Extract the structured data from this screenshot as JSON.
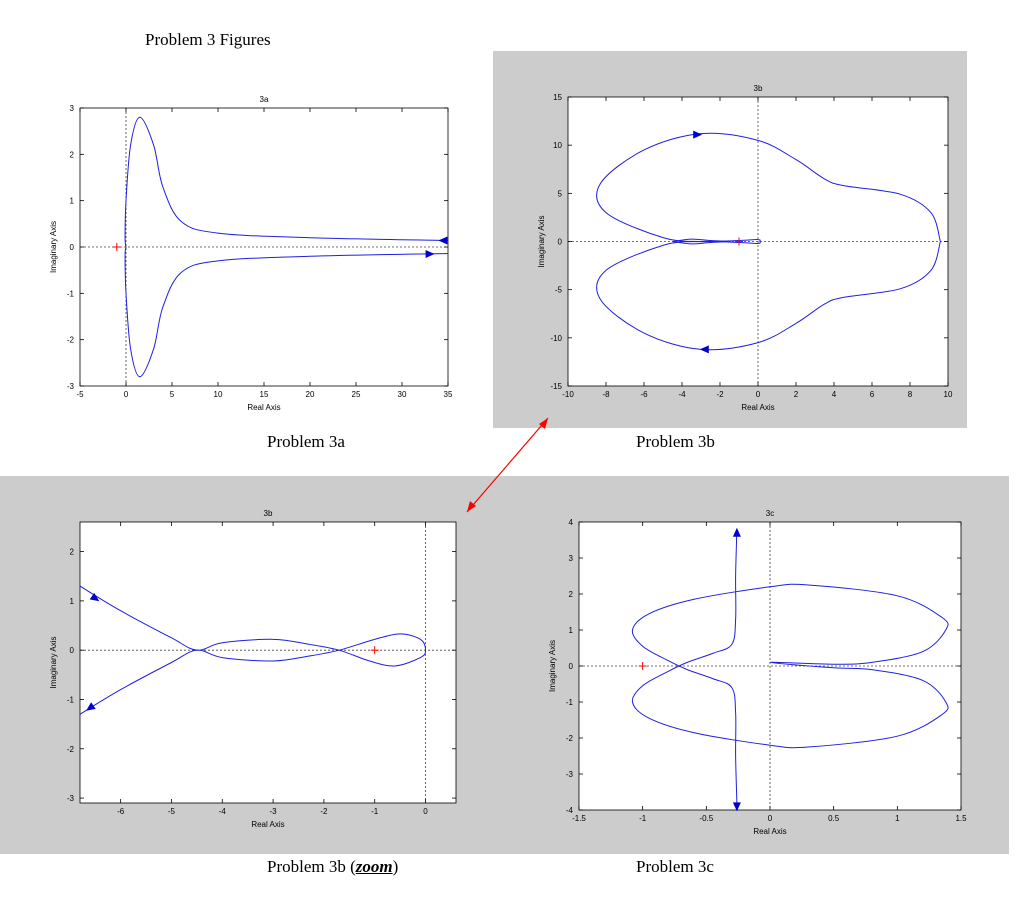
{
  "page_title": "Problem 3 Figures",
  "colors": {
    "curve": "#1f1fe0",
    "marker": "#ff0000",
    "figure_bg": "#cccccc"
  },
  "captions": {
    "p3a": "Problem 3a",
    "p3b": "Problem 3b",
    "p3b_zoom_prefix": "Problem 3b (",
    "p3b_zoom_word": "zoom",
    "p3b_zoom_suffix": ")",
    "p3c": "Problem 3c"
  },
  "chart_data": [
    {
      "id": "p3a",
      "type": "line",
      "title": "3a",
      "xlabel": "Real Axis",
      "ylabel": "Imaginary Axis",
      "xlim": [
        -5,
        35
      ],
      "ylim": [
        -3,
        3
      ],
      "xticks": [
        -5,
        0,
        5,
        10,
        15,
        20,
        25,
        30,
        35
      ],
      "yticks": [
        -3,
        -2,
        -1,
        0,
        1,
        2,
        3
      ],
      "grid": false,
      "marker": [
        -1,
        0
      ],
      "series": [
        {
          "values": [
            [
              35,
              0.14
            ],
            [
              20,
              0.2
            ],
            [
              10,
              0.3
            ],
            [
              6,
              0.55
            ],
            [
              4,
              1.3
            ],
            [
              3,
              2.2
            ],
            [
              1.5,
              2.8
            ],
            [
              0.5,
              2.2
            ],
            [
              0,
              1
            ],
            [
              -0.1,
              0.2
            ],
            [
              0,
              0
            ]
          ]
        },
        {
          "values": [
            [
              0,
              0
            ],
            [
              -0.1,
              -0.2
            ],
            [
              0,
              -1
            ],
            [
              0.5,
              -2.2
            ],
            [
              1.5,
              -2.8
            ],
            [
              3,
              -2.2
            ],
            [
              4,
              -1.3
            ],
            [
              6,
              -0.55
            ],
            [
              10,
              -0.3
            ],
            [
              20,
              -0.2
            ],
            [
              35,
              -0.14
            ]
          ]
        }
      ],
      "arrows": [
        {
          "x": 34.5,
          "y": 0.14,
          "dir": "left"
        },
        {
          "x": 33,
          "y": -0.15,
          "dir": "right"
        }
      ]
    },
    {
      "id": "p3b",
      "type": "line",
      "title": "3b",
      "xlabel": "Real Axis",
      "ylabel": "Imaginary Axis",
      "xlim": [
        -10,
        10
      ],
      "ylim": [
        -15,
        15
      ],
      "xticks": [
        -10,
        -8,
        -6,
        -4,
        -2,
        0,
        2,
        4,
        6,
        8,
        10
      ],
      "yticks": [
        -15,
        -10,
        -5,
        0,
        5,
        10,
        15
      ],
      "grid": false,
      "marker": [
        -1,
        0
      ],
      "series": [
        {
          "values": [
            [
              9.6,
              0
            ],
            [
              9.1,
              3
            ],
            [
              7.5,
              4.9
            ],
            [
              4.5,
              5.8
            ],
            [
              3.5,
              6.5
            ],
            [
              2,
              8.5
            ],
            [
              0,
              10.5
            ],
            [
              -3,
              11.2
            ],
            [
              -6,
              9.5
            ],
            [
              -8.3,
              6
            ],
            [
              -8,
              3
            ],
            [
              -5,
              0.4
            ],
            [
              -3,
              0
            ],
            [
              -1,
              0.1
            ],
            [
              0,
              0.2
            ],
            [
              0.1,
              0
            ],
            [
              0,
              -0.2
            ],
            [
              -1,
              -0.1
            ],
            [
              -3,
              0
            ],
            [
              -5,
              -0.4
            ],
            [
              -8,
              -3
            ],
            [
              -8.3,
              -6
            ],
            [
              -6,
              -9.5
            ],
            [
              -3,
              -11.2
            ],
            [
              0,
              -10.5
            ],
            [
              2,
              -8.5
            ],
            [
              3.5,
              -6.5
            ],
            [
              4.5,
              -5.8
            ],
            [
              7.5,
              -4.9
            ],
            [
              9.1,
              -3
            ],
            [
              9.6,
              0
            ]
          ]
        },
        {
          "values": [
            [
              -4.5,
              0
            ],
            [
              -3.5,
              0.25
            ],
            [
              -2.5,
              0.1
            ],
            [
              -1.5,
              0
            ],
            [
              -2.5,
              -0.1
            ],
            [
              -3.5,
              -0.25
            ],
            [
              -4.5,
              0
            ]
          ]
        }
      ],
      "arrows": [
        {
          "x": -3.2,
          "y": 11.1,
          "dir": "right"
        },
        {
          "x": -2.8,
          "y": -11.2,
          "dir": "left"
        }
      ]
    },
    {
      "id": "p3bz",
      "type": "line",
      "title": "3b",
      "xlabel": "Real Axis",
      "ylabel": "Imaginary Axis",
      "xlim": [
        -6.8,
        0.6
      ],
      "ylim": [
        -3.1,
        2.6
      ],
      "xticks": [
        -6,
        -5,
        -4,
        -3,
        -2,
        -1,
        0
      ],
      "yticks": [
        -3,
        -2,
        -1,
        0,
        1,
        2
      ],
      "grid": false,
      "marker": [
        -1,
        0
      ],
      "series": [
        {
          "values": [
            [
              -6.8,
              1.3
            ],
            [
              -6,
              0.8
            ],
            [
              -5,
              0.25
            ],
            [
              -4.5,
              0
            ],
            [
              -4,
              0.15
            ],
            [
              -3,
              0.22
            ],
            [
              -2.3,
              0.12
            ],
            [
              -1.7,
              0
            ],
            [
              -1.1,
              -0.22
            ],
            [
              -0.6,
              -0.32
            ],
            [
              -0.1,
              -0.15
            ],
            [
              0,
              0
            ],
            [
              -0.1,
              0.22
            ],
            [
              -0.5,
              0.33
            ],
            [
              -1,
              0.22
            ],
            [
              -1.7,
              0
            ],
            [
              -2.3,
              -0.12
            ],
            [
              -3,
              -0.22
            ],
            [
              -4,
              -0.15
            ],
            [
              -4.5,
              0
            ],
            [
              -5,
              -0.25
            ],
            [
              -6,
              -0.8
            ],
            [
              -6.8,
              -1.3
            ]
          ]
        }
      ],
      "arrows": [
        {
          "x": -6.5,
          "y": 1.05,
          "dir": "down-right"
        },
        {
          "x": -6.6,
          "y": -1.17,
          "dir": "down-left"
        }
      ]
    },
    {
      "id": "p3c",
      "type": "line",
      "title": "3c",
      "xlabel": "Real Axis",
      "ylabel": "Imaginary Axis",
      "xlim": [
        -1.5,
        1.5
      ],
      "ylim": [
        -4,
        4
      ],
      "xticks": [
        -1.5,
        -1,
        -0.5,
        0,
        0.5,
        1,
        1.5
      ],
      "yticks": [
        -4,
        -3,
        -2,
        -1,
        0,
        1,
        2,
        3,
        4
      ],
      "grid": false,
      "marker": [
        -1,
        0
      ],
      "series": [
        {
          "values": [
            [
              -0.26,
              3.8
            ],
            [
              -0.27,
              2.5
            ],
            [
              -0.27,
              1.3
            ],
            [
              -0.3,
              0.6
            ],
            [
              -0.45,
              0.35
            ],
            [
              -0.65,
              0.1
            ],
            [
              -0.8,
              -0.15
            ],
            [
              -1.0,
              -0.55
            ],
            [
              -1.08,
              -1.0
            ],
            [
              -0.95,
              -1.45
            ],
            [
              -0.6,
              -1.85
            ],
            [
              0.0,
              -2.2
            ],
            [
              0.3,
              -2.25
            ],
            [
              1.0,
              -1.95
            ],
            [
              1.35,
              -1.35
            ],
            [
              1.38,
              -1.0
            ],
            [
              1.2,
              -0.4
            ],
            [
              0.8,
              -0.1
            ],
            [
              0.5,
              -0.05
            ],
            [
              0.0,
              0.1
            ],
            [
              0.5,
              0.05
            ],
            [
              0.8,
              0.1
            ],
            [
              1.2,
              0.4
            ],
            [
              1.38,
              1.0
            ],
            [
              1.35,
              1.35
            ],
            [
              1.0,
              1.95
            ],
            [
              0.3,
              2.25
            ],
            [
              0.0,
              2.2
            ],
            [
              -0.6,
              1.85
            ],
            [
              -0.95,
              1.45
            ],
            [
              -1.08,
              1.0
            ],
            [
              -1.0,
              0.55
            ],
            [
              -0.8,
              0.15
            ],
            [
              -0.65,
              -0.1
            ],
            [
              -0.45,
              -0.35
            ],
            [
              -0.3,
              -0.6
            ],
            [
              -0.27,
              -1.3
            ],
            [
              -0.27,
              -2.5
            ],
            [
              -0.26,
              -3.8
            ]
          ]
        }
      ],
      "arrows": [
        {
          "x": -0.26,
          "y": 3.7,
          "dir": "up"
        },
        {
          "x": -0.26,
          "y": -3.9,
          "dir": "down"
        }
      ]
    }
  ]
}
